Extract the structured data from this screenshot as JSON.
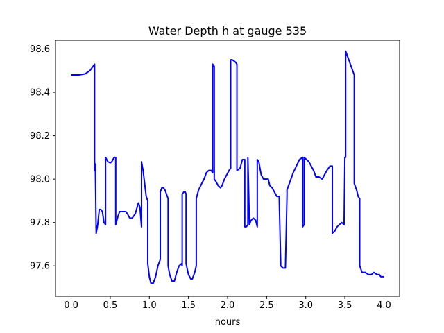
{
  "chart_data": {
    "type": "line",
    "title": "Water Depth h at gauge 535",
    "xlabel": "hours",
    "ylabel": "",
    "xlim": [
      -0.2,
      4.2
    ],
    "ylim": [
      97.46,
      98.64
    ],
    "xticks": [
      0.0,
      0.5,
      1.0,
      1.5,
      2.0,
      2.5,
      3.0,
      3.5,
      4.0
    ],
    "xtick_labels": [
      "0.0",
      "0.5",
      "1.0",
      "1.5",
      "2.0",
      "2.5",
      "3.0",
      "3.5",
      "4.0"
    ],
    "yticks": [
      97.6,
      97.8,
      98.0,
      98.2,
      98.4,
      98.6
    ],
    "ytick_labels": [
      "97.6",
      "97.8",
      "98.0",
      "98.2",
      "98.4",
      "98.6"
    ],
    "grid": false,
    "series": [
      {
        "color": "#0000ff",
        "x": [
          0.0,
          0.1,
          0.18,
          0.24,
          0.28,
          0.3,
          0.3,
          0.31,
          0.31,
          0.32,
          0.34,
          0.36,
          0.38,
          0.4,
          0.42,
          0.44,
          0.44,
          0.47,
          0.5,
          0.52,
          0.55,
          0.57,
          0.57,
          0.6,
          0.62,
          0.66,
          0.7,
          0.72,
          0.75,
          0.78,
          0.82,
          0.86,
          0.88,
          0.9,
          0.9,
          0.92,
          0.96,
          0.98,
          0.98,
          1.0,
          1.02,
          1.05,
          1.08,
          1.11,
          1.14,
          1.14,
          1.16,
          1.18,
          1.2,
          1.22,
          1.24,
          1.24,
          1.26,
          1.29,
          1.32,
          1.35,
          1.38,
          1.41,
          1.42,
          1.42,
          1.44,
          1.46,
          1.47,
          1.47,
          1.5,
          1.53,
          1.55,
          1.58,
          1.6,
          1.6,
          1.63,
          1.67,
          1.7,
          1.73,
          1.76,
          1.79,
          1.81,
          1.81,
          1.83,
          1.83,
          1.85,
          1.88,
          1.91,
          1.93,
          1.96,
          1.99,
          2.02,
          2.04,
          2.04,
          2.06,
          2.1,
          2.12,
          2.12,
          2.16,
          2.19,
          2.22,
          2.22,
          2.24,
          2.26,
          2.26,
          2.28,
          2.3,
          2.33,
          2.36,
          2.38,
          2.38,
          2.4,
          2.43,
          2.46,
          2.49,
          2.52,
          2.54,
          2.57,
          2.6,
          2.63,
          2.66,
          2.68,
          2.68,
          2.71,
          2.74,
          2.76,
          2.76,
          2.8,
          2.84,
          2.88,
          2.92,
          2.96,
          2.96,
          2.98,
          2.98,
          3.01,
          3.04,
          3.07,
          3.1,
          3.13,
          3.17,
          3.21,
          3.24,
          3.27,
          3.31,
          3.34,
          3.34,
          3.37,
          3.4,
          3.43,
          3.46,
          3.49,
          3.5,
          3.5,
          3.51,
          3.51,
          3.62,
          3.62,
          3.65,
          3.67,
          3.69,
          3.69,
          3.72,
          3.76,
          3.8,
          3.84,
          3.87,
          3.91,
          3.94,
          3.96,
          4.0
        ],
        "y": [
          98.48,
          98.48,
          98.485,
          98.5,
          98.52,
          98.53,
          98.04,
          98.07,
          98.04,
          97.75,
          97.79,
          97.86,
          97.86,
          97.85,
          97.8,
          97.79,
          98.1,
          98.08,
          98.075,
          98.08,
          98.1,
          98.1,
          97.79,
          97.83,
          97.85,
          97.85,
          97.85,
          97.84,
          97.82,
          97.82,
          97.84,
          97.89,
          97.87,
          97.78,
          98.08,
          98.04,
          97.92,
          97.9,
          97.61,
          97.55,
          97.52,
          97.52,
          97.55,
          97.6,
          97.63,
          97.94,
          97.96,
          97.96,
          97.95,
          97.93,
          97.91,
          97.6,
          97.56,
          97.53,
          97.53,
          97.57,
          97.6,
          97.61,
          97.6,
          97.93,
          97.94,
          97.94,
          97.93,
          97.61,
          97.56,
          97.54,
          97.54,
          97.57,
          97.6,
          97.91,
          97.95,
          97.98,
          98.0,
          98.03,
          98.04,
          98.04,
          98.03,
          98.53,
          98.52,
          98.0,
          97.99,
          97.97,
          97.96,
          97.97,
          98.0,
          98.02,
          98.04,
          98.05,
          98.55,
          98.55,
          98.54,
          98.53,
          98.04,
          98.05,
          98.09,
          98.09,
          97.78,
          97.78,
          97.79,
          98.1,
          97.79,
          97.81,
          97.82,
          97.81,
          97.78,
          98.09,
          98.08,
          98.02,
          98.0,
          98.0,
          98.0,
          97.97,
          97.96,
          97.94,
          97.92,
          97.92,
          97.61,
          97.6,
          97.59,
          97.59,
          97.92,
          97.95,
          97.99,
          98.03,
          98.06,
          98.09,
          98.1,
          97.78,
          97.79,
          98.1,
          98.09,
          98.08,
          98.06,
          98.04,
          98.01,
          98.01,
          98.0,
          98.02,
          98.04,
          98.06,
          98.06,
          97.75,
          97.76,
          97.78,
          97.79,
          97.8,
          97.79,
          98.1,
          98.1,
          98.1,
          98.59,
          98.48,
          97.98,
          97.95,
          97.92,
          97.91,
          97.6,
          97.57,
          97.57,
          97.56,
          97.56,
          97.57,
          97.56,
          97.56,
          97.55,
          97.55
        ]
      }
    ]
  }
}
